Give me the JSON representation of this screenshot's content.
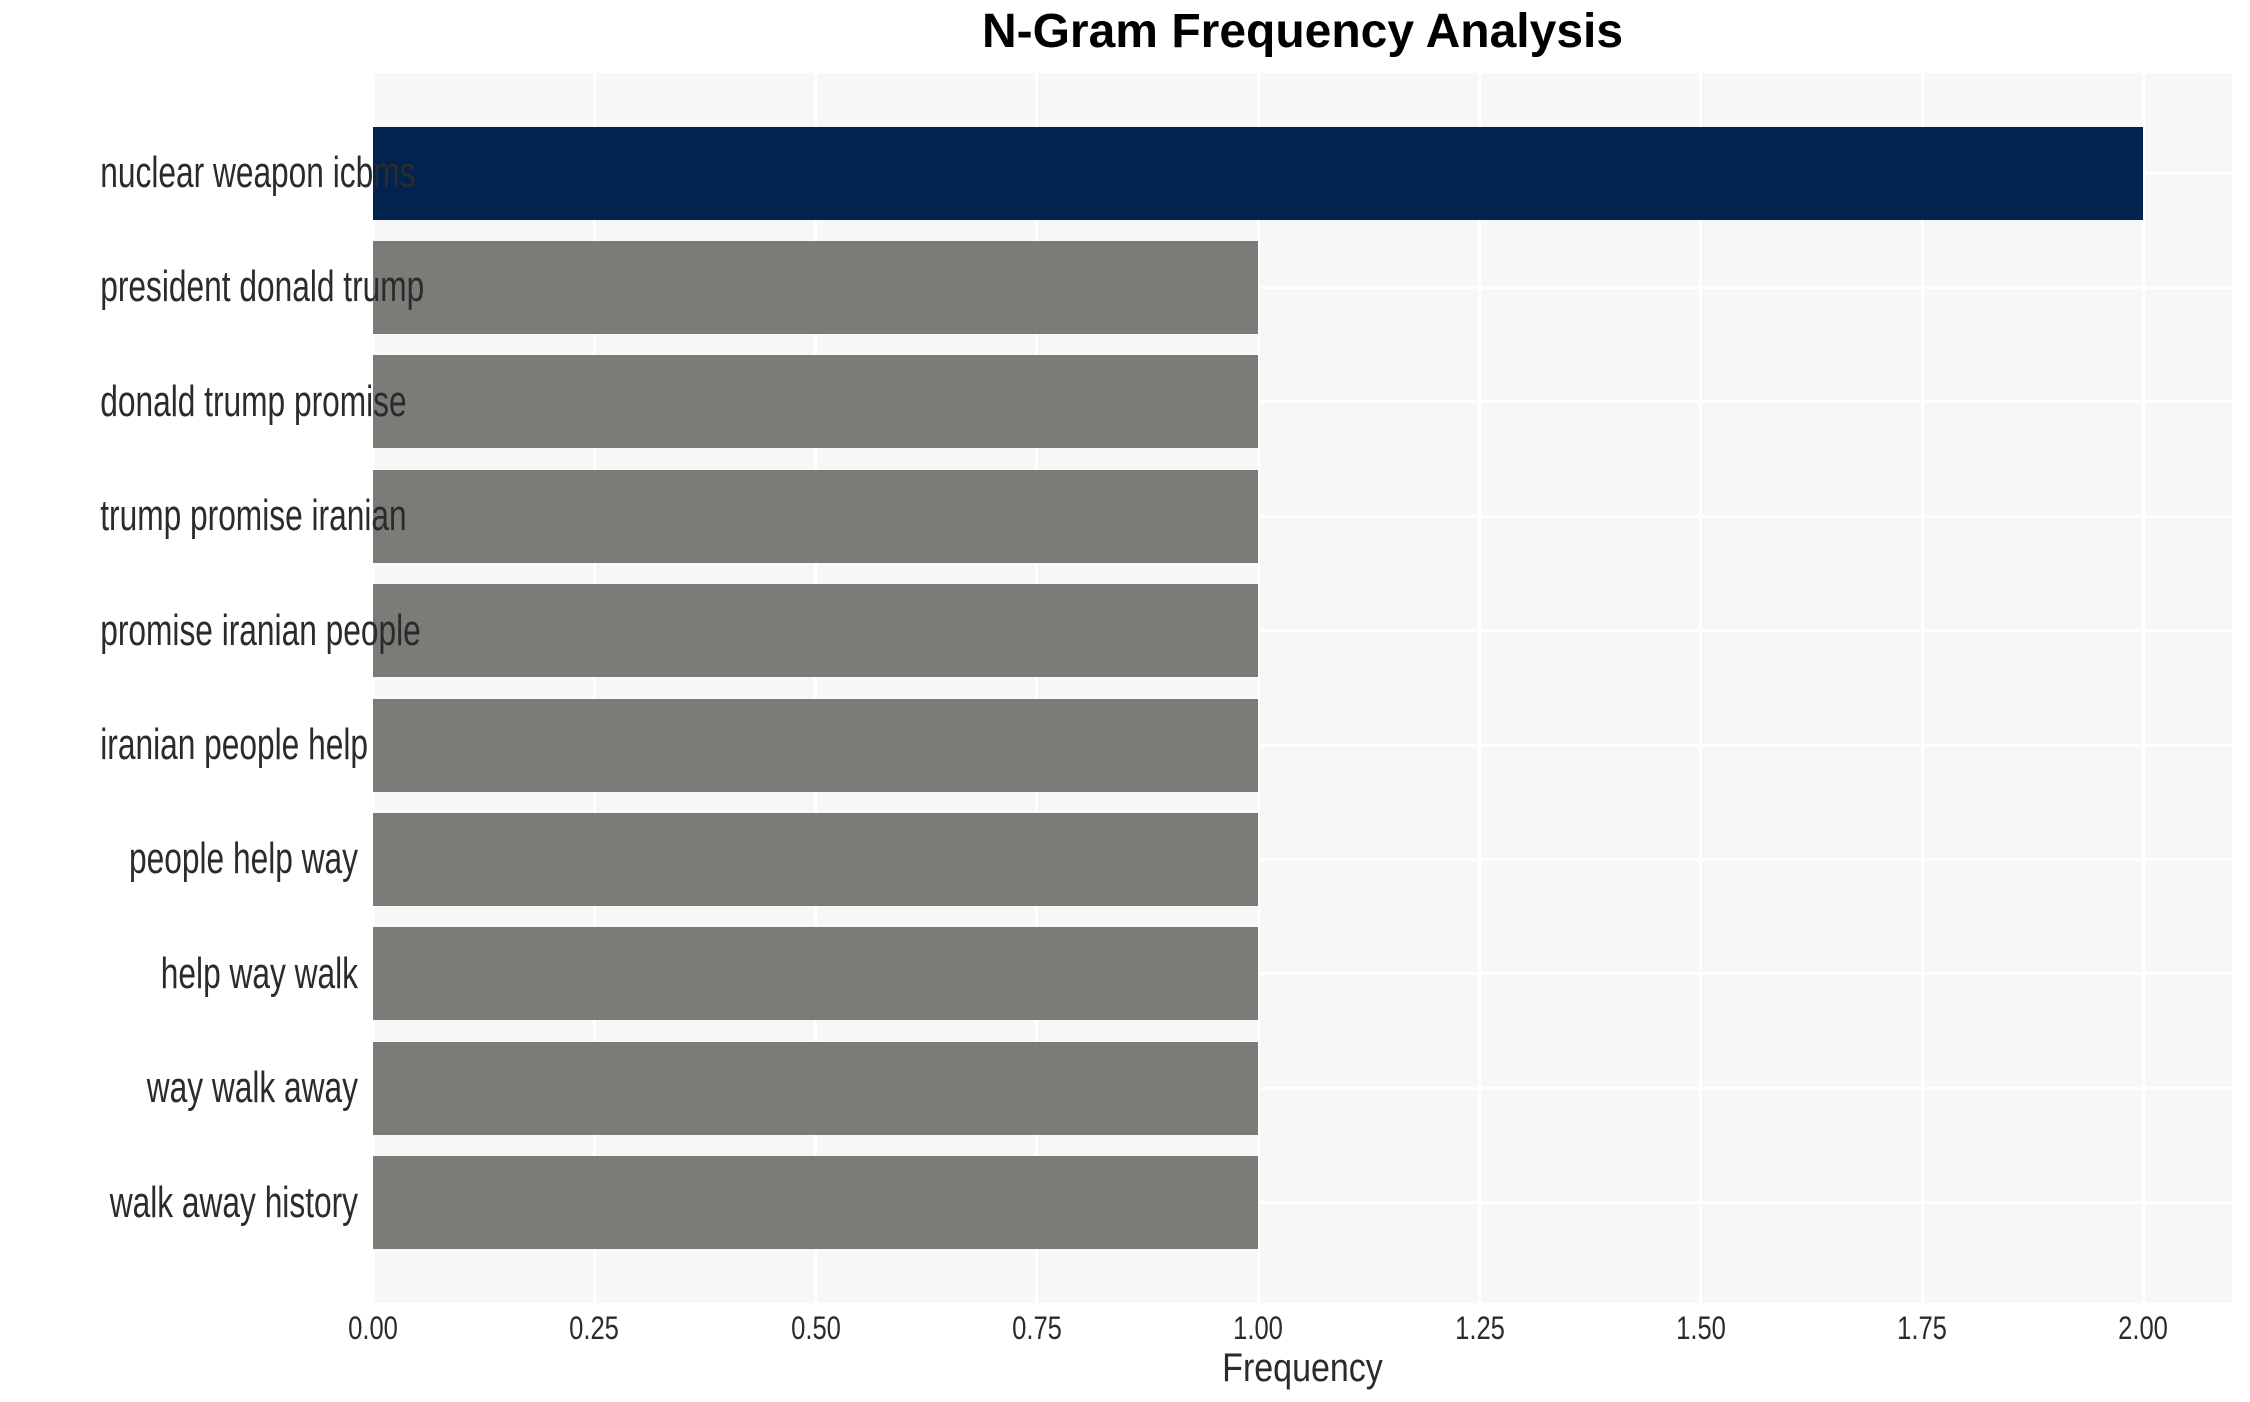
{
  "page": {
    "background": "#ffffff"
  },
  "chart_data": {
    "type": "bar",
    "orientation": "horizontal",
    "title": "N-Gram Frequency Analysis",
    "xlabel": "Frequency",
    "ylabel": "",
    "categories": [
      "nuclear weapon icbms",
      "president donald trump",
      "donald trump promise",
      "trump promise iranian",
      "promise iranian people",
      "iranian people help",
      "people help way",
      "help way walk",
      "way walk away",
      "walk away history"
    ],
    "values": [
      2,
      1,
      1,
      1,
      1,
      1,
      1,
      1,
      1,
      1
    ],
    "xlim": [
      0,
      2.1
    ],
    "xticks": [
      0,
      0.25,
      0.5,
      0.75,
      1.0,
      1.25,
      1.5,
      1.75,
      2.0
    ],
    "xtick_labels": [
      "0.00",
      "0.25",
      "0.50",
      "0.75",
      "1.00",
      "1.25",
      "1.50",
      "1.75",
      "2.00"
    ],
    "grid": true,
    "legend": false,
    "panel_background": "#f7f7f7",
    "gridline_color": "#ffffff",
    "highlight_color": "#02234d",
    "default_color": "#7b7b78",
    "bar_colors": [
      "#02234d",
      "#7b7b78",
      "#7b7b78",
      "#7b7b78",
      "#7b7b78",
      "#7b7b78",
      "#7b7b78",
      "#7b7b78",
      "#7b7b78",
      "#7b7b78"
    ],
    "text_color": "#2b2b2b",
    "title_color": "#000000"
  }
}
